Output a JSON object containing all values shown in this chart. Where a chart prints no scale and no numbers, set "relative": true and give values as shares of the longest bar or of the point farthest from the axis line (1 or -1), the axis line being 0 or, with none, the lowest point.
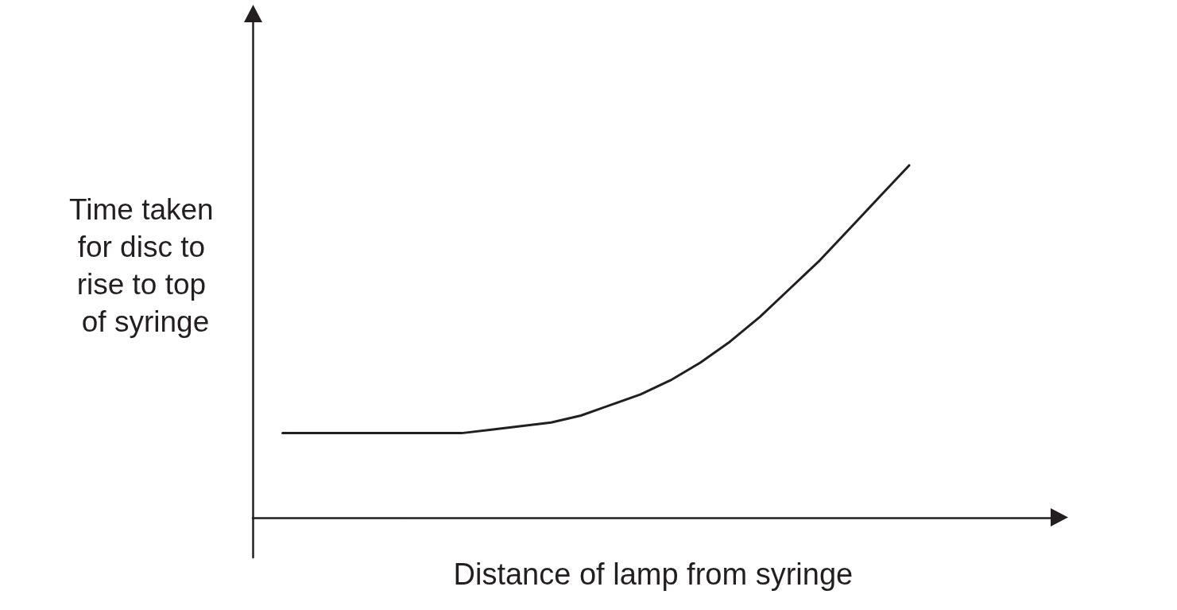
{
  "chart_data": {
    "type": "line",
    "relative": true,
    "xlabel": "Distance of lamp from syringe",
    "ylabel": "Time taken for disc to rise to top of syringe",
    "categories": [
      null,
      null,
      null,
      null,
      null,
      null,
      null,
      null,
      null,
      null,
      null,
      null,
      null,
      null,
      null,
      null,
      null,
      null,
      null,
      null,
      null,
      null,
      null,
      null,
      null,
      null,
      null,
      null
    ],
    "series": [
      {
        "color": "#231f20",
        "values": [
          null,
          0.24,
          0.24,
          0.24,
          0.24,
          0.24,
          0.24,
          0.24,
          0.25,
          0.26,
          0.27,
          0.29,
          0.32,
          0.35,
          0.39,
          0.44,
          0.5,
          0.57,
          0.65,
          0.73,
          0.82,
          0.91,
          1,
          null,
          null,
          null,
          null,
          null
        ]
      }
    ],
    "marker": "none",
    "line_style": "solid"
  }
}
